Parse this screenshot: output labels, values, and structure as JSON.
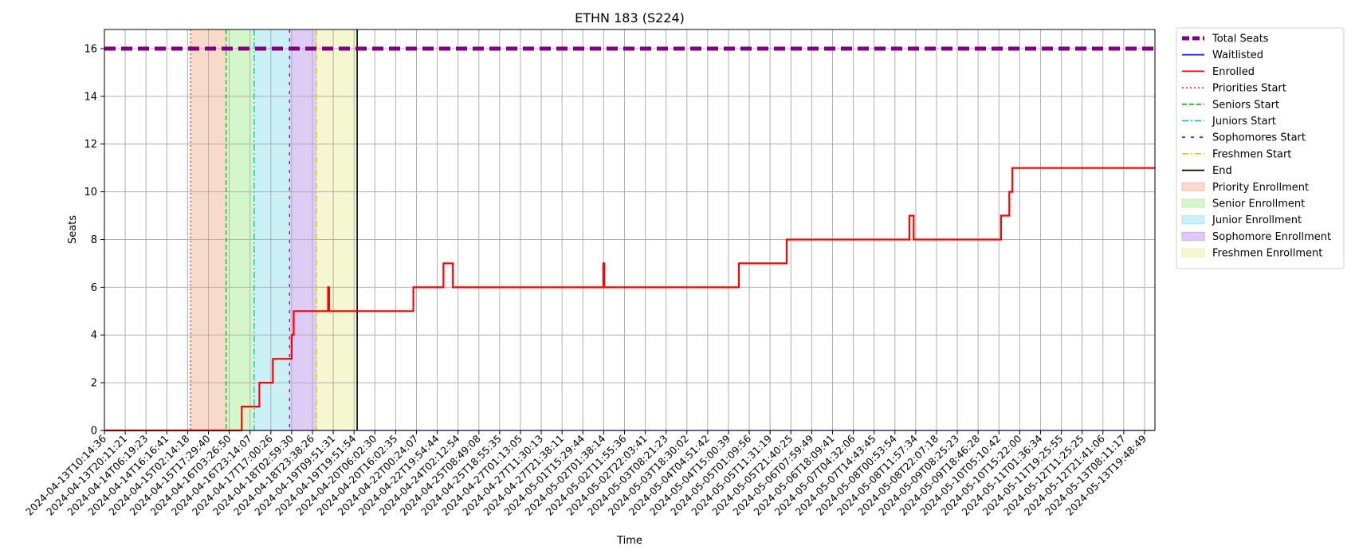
{
  "chart_data": {
    "type": "line",
    "title": "ETHN 183 (S224)",
    "xlabel": "Time",
    "ylabel": "Seats",
    "ylim": [
      0,
      16.8
    ],
    "yticks": [
      0,
      2,
      4,
      6,
      8,
      10,
      12,
      14,
      16
    ],
    "grid": true,
    "legend_position": "outside-right",
    "x_range": [
      0,
      50.5
    ],
    "x_tick_labels": [
      "2024-04-13T10:14:36",
      "2024-04-13T20:11:21",
      "2024-04-14T06:19:23",
      "2024-04-14T16:16:41",
      "2024-04-15T02:14:18",
      "2024-04-15T17:29:40",
      "2024-04-16T03:26:50",
      "2024-04-16T23:14:07",
      "2024-04-17T17:00:26",
      "2024-04-18T02:59:30",
      "2024-04-18T23:38:26",
      "2024-04-19T09:51:31",
      "2024-04-19T19:51:54",
      "2024-04-20T06:02:30",
      "2024-04-20T16:02:35",
      "2024-04-22T00:24:07",
      "2024-04-22T19:54:44",
      "2024-04-24T02:12:54",
      "2024-04-25T08:49:08",
      "2024-04-25T18:55:35",
      "2024-04-27T01:13:05",
      "2024-04-27T11:30:13",
      "2024-04-27T21:38:11",
      "2024-05-01T15:29:44",
      "2024-05-02T01:38:14",
      "2024-05-02T11:55:36",
      "2024-05-02T22:03:41",
      "2024-05-03T08:21:23",
      "2024-05-03T18:30:02",
      "2024-05-04T04:51:42",
      "2024-05-04T15:00:39",
      "2024-05-05T01:09:56",
      "2024-05-05T11:31:19",
      "2024-05-05T21:40:25",
      "2024-05-06T07:59:49",
      "2024-05-06T18:09:41",
      "2024-05-07T04:32:06",
      "2024-05-07T14:43:45",
      "2024-05-08T00:53:54",
      "2024-05-08T11:57:34",
      "2024-05-08T22:07:18",
      "2024-05-09T08:25:23",
      "2024-05-09T18:46:28",
      "2024-05-10T05:10:42",
      "2024-05-10T15:22:00",
      "2024-05-11T01:36:34",
      "2024-05-11T19:25:55",
      "2024-05-12T11:25:25",
      "2024-05-12T21:41:06",
      "2024-05-13T08:11:17",
      "2024-05-13T19:48:49"
    ],
    "phases": [
      {
        "name": "Priority Enrollment",
        "start": 4.15,
        "end": 5.85,
        "color": "#f4c2a8"
      },
      {
        "name": "Senior Enrollment",
        "start": 5.85,
        "end": 7.2,
        "color": "#b8f0a8"
      },
      {
        "name": "Junior Enrollment",
        "start": 7.2,
        "end": 8.9,
        "color": "#a8e8f0"
      },
      {
        "name": "Sophomore Enrollment",
        "start": 8.9,
        "end": 10.2,
        "color": "#c8a8f0"
      },
      {
        "name": "Freshmen Enrollment",
        "start": 10.2,
        "end": 12.15,
        "color": "#f0f0b0"
      }
    ],
    "markers": [
      {
        "name": "Priorities Start",
        "x": 4.15,
        "color": "#e8412b",
        "style": "dotted"
      },
      {
        "name": "Seniors Start",
        "x": 5.85,
        "color": "#22bb22",
        "style": "dashed"
      },
      {
        "name": "Juniors Start",
        "x": 7.2,
        "color": "#11c5d8",
        "style": "dashdot"
      },
      {
        "name": "Sophomores Start",
        "x": 8.9,
        "color": "#6a22dd",
        "style": "loosedash"
      },
      {
        "name": "Freshmen Start",
        "x": 10.2,
        "color": "#e0d010",
        "style": "dashdot"
      },
      {
        "name": "End",
        "x": 12.15,
        "color": "#000000",
        "style": "solid"
      }
    ],
    "series": [
      {
        "name": "Total Seats",
        "color": "#800080",
        "style": "thickdash",
        "constant": 16
      },
      {
        "name": "Waitlisted",
        "color": "#2a2aee",
        "style": "solid",
        "constant": 0
      },
      {
        "name": "Enrolled",
        "color": "#ff0000",
        "style": "solid",
        "step_points": [
          [
            0,
            0
          ],
          [
            6.6,
            0
          ],
          [
            6.6,
            1
          ],
          [
            7.45,
            1
          ],
          [
            7.45,
            2
          ],
          [
            8.1,
            2
          ],
          [
            8.1,
            3
          ],
          [
            9.0,
            3
          ],
          [
            9.0,
            4
          ],
          [
            9.1,
            4
          ],
          [
            9.1,
            5
          ],
          [
            10.75,
            5
          ],
          [
            10.75,
            6
          ],
          [
            10.8,
            6
          ],
          [
            10.8,
            5
          ],
          [
            14.85,
            5
          ],
          [
            14.85,
            6
          ],
          [
            16.3,
            6
          ],
          [
            16.3,
            7
          ],
          [
            16.75,
            7
          ],
          [
            16.75,
            6
          ],
          [
            23.98,
            6
          ],
          [
            23.98,
            7
          ],
          [
            24.03,
            7
          ],
          [
            24.03,
            6
          ],
          [
            30.5,
            6
          ],
          [
            30.5,
            7
          ],
          [
            32.8,
            7
          ],
          [
            32.8,
            8
          ],
          [
            38.7,
            8
          ],
          [
            38.7,
            9
          ],
          [
            38.9,
            9
          ],
          [
            38.9,
            8
          ],
          [
            43.1,
            8
          ],
          [
            43.1,
            9
          ],
          [
            43.5,
            9
          ],
          [
            43.5,
            10
          ],
          [
            43.65,
            10
          ],
          [
            43.65,
            11
          ],
          [
            50.5,
            11
          ]
        ]
      }
    ],
    "legend": [
      {
        "label": "Total Seats",
        "kind": "line",
        "color": "#800080",
        "style": "thickdash"
      },
      {
        "label": "Waitlisted",
        "kind": "line",
        "color": "#2a2aee",
        "style": "solid"
      },
      {
        "label": "Enrolled",
        "kind": "line",
        "color": "#ff0000",
        "style": "solid"
      },
      {
        "label": "Priorities Start",
        "kind": "line",
        "color": "#e8412b",
        "style": "dotted"
      },
      {
        "label": "Seniors Start",
        "kind": "line",
        "color": "#22bb22",
        "style": "dashed"
      },
      {
        "label": "Juniors Start",
        "kind": "line",
        "color": "#11c5d8",
        "style": "dashdot"
      },
      {
        "label": "Sophomores Start",
        "kind": "line",
        "color": "#6a22dd",
        "style": "loosedash"
      },
      {
        "label": "Freshmen Start",
        "kind": "line",
        "color": "#e0d010",
        "style": "dashdot"
      },
      {
        "label": "End",
        "kind": "line",
        "color": "#000000",
        "style": "solid"
      },
      {
        "label": "Priority Enrollment",
        "kind": "patch",
        "color": "#f4c2a8"
      },
      {
        "label": "Senior Enrollment",
        "kind": "patch",
        "color": "#b8f0a8"
      },
      {
        "label": "Junior Enrollment",
        "kind": "patch",
        "color": "#a8e8f0"
      },
      {
        "label": "Sophomore Enrollment",
        "kind": "patch",
        "color": "#c8a8f0"
      },
      {
        "label": "Freshmen Enrollment",
        "kind": "patch",
        "color": "#f0f0b0"
      }
    ]
  }
}
